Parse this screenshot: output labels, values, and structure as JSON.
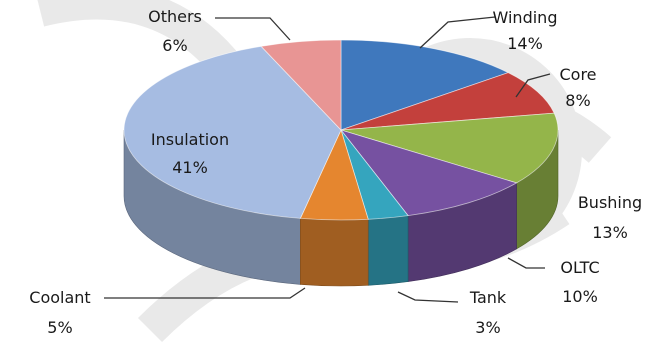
{
  "chart_data": {
    "type": "pie",
    "style": "3d-exploded-none",
    "categories": [
      "Winding",
      "Core",
      "Bushing",
      "OLTC",
      "Tank",
      "Coolant",
      "Insulation",
      "Others"
    ],
    "values": [
      14,
      8,
      13,
      10,
      3,
      5,
      41,
      6
    ],
    "value_labels": [
      "14%",
      "8%",
      "13%",
      "10%",
      "3%",
      "5%",
      "41%",
      "6%"
    ],
    "colors": [
      "#3f78bd",
      "#c3403c",
      "#94b54a",
      "#7651a1",
      "#35a5be",
      "#e5862f",
      "#a6bce2",
      "#e89594"
    ],
    "title": "",
    "legend": "none",
    "data_labels": "outside-with-leaders"
  }
}
